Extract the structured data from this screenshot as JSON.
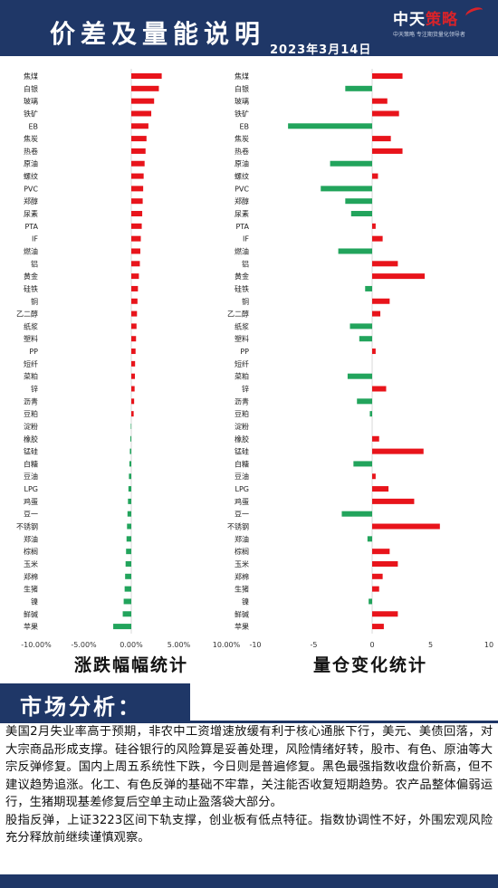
{
  "header": {
    "title": "价差及量能说明",
    "date": "2023年3月14日",
    "logo_name_a": "中天",
    "logo_name_b": "策略",
    "logo_slogan": "中天策略  专注期货量化领导者"
  },
  "colors": {
    "up": "#e8141b",
    "down": "#22a45c",
    "navy": "#1f3767"
  },
  "chart_data": [
    {
      "type": "bar",
      "orientation": "horizontal",
      "title": "涨跌幅幅统计",
      "categories": [
        "焦煤",
        "白银",
        "玻璃",
        "铁矿",
        "EB",
        "焦炭",
        "热卷",
        "原油",
        "螺纹",
        "PVC",
        "郑醇",
        "尿素",
        "PTA",
        "IF",
        "燃油",
        "铝",
        "黄金",
        "硅铁",
        "铜",
        "乙二醇",
        "纸浆",
        "塑料",
        "PP",
        "短纤",
        "菜粕",
        "锌",
        "沥青",
        "豆粕",
        "淀粉",
        "橡胶",
        "锰硅",
        "白糖",
        "豆油",
        "LPG",
        "鸡蛋",
        "豆一",
        "不锈钢",
        "郑油",
        "棕榈",
        "玉米",
        "郑棉",
        "生猪",
        "镍",
        "鲜碱",
        "苹果"
      ],
      "values": [
        3.2,
        2.9,
        2.4,
        2.1,
        1.8,
        1.6,
        1.5,
        1.4,
        1.3,
        1.25,
        1.2,
        1.15,
        1.1,
        1.0,
        0.95,
        0.9,
        0.8,
        0.7,
        0.65,
        0.6,
        0.55,
        0.5,
        0.45,
        0.4,
        0.38,
        0.35,
        0.3,
        0.25,
        -0.05,
        -0.1,
        -0.15,
        -0.2,
        -0.25,
        -0.3,
        -0.35,
        -0.4,
        -0.45,
        -0.5,
        -0.55,
        -0.6,
        -0.65,
        -0.7,
        -0.8,
        -0.9,
        -1.9
      ],
      "xlim": [
        -10,
        10
      ],
      "xticks": [
        "-10.00%",
        "-5.00%",
        "0.00%",
        "5.00%",
        "10.00%"
      ]
    },
    {
      "type": "bar",
      "orientation": "horizontal",
      "title": "量仓变化统计",
      "categories": [
        "焦煤",
        "白银",
        "玻璃",
        "铁矿",
        "EB",
        "焦炭",
        "热卷",
        "原油",
        "螺纹",
        "PVC",
        "郑醇",
        "尿素",
        "PTA",
        "IF",
        "燃油",
        "铝",
        "黄金",
        "硅铁",
        "铜",
        "乙二醇",
        "纸浆",
        "塑料",
        "PP",
        "短纤",
        "菜粕",
        "锌",
        "沥青",
        "豆粕",
        "淀粉",
        "橡胶",
        "锰硅",
        "白糖",
        "豆油",
        "LPG",
        "鸡蛋",
        "豆一",
        "不锈钢",
        "郑油",
        "棕榈",
        "玉米",
        "郑棉",
        "生猪",
        "镍",
        "鲜碱",
        "苹果"
      ],
      "values": [
        2.6,
        -2.3,
        1.3,
        2.3,
        -7.2,
        1.6,
        2.6,
        -3.6,
        0.5,
        -4.4,
        -2.3,
        -1.8,
        0.3,
        0.9,
        -2.9,
        2.2,
        4.5,
        -0.6,
        1.5,
        0.7,
        -1.9,
        -1.1,
        0.3,
        0.0,
        -2.1,
        1.2,
        -1.3,
        -0.2,
        0.0,
        0.6,
        4.4,
        -1.6,
        0.3,
        1.4,
        3.6,
        -2.6,
        5.8,
        -0.4,
        1.5,
        2.2,
        0.9,
        0.6,
        -0.3,
        2.2,
        1.0
      ],
      "xlim": [
        -10,
        10
      ],
      "xticks": [
        "-10",
        "-5",
        "0",
        "5",
        "10"
      ]
    }
  ],
  "section": {
    "title": "市场分析："
  },
  "analysis": {
    "p1": "美国2月失业率高于预期，非农中工资增速放缓有利于核心通胀下行，美元、美债回落，对大宗商品形成支撑。硅谷银行的风险算是妥善处理，风险情绪好转，股市、有色、原油等大宗反弹修复。国内上周五系统性下跌，今日则是普遍修复。黑色最强指数收盘价新高，但不建议趋势追涨。化工、有色反弹的基础不牢靠，关注能否收复短期趋势。农产品整体偏弱运行，生猪期现基差修复后空单主动止盈落袋大部分。",
    "p2": "股指反弹，上证3223区间下轨支撑，创业板有低点特征。指数协调性不好，外围宏观风险充分释放前继续谨慎观察。"
  }
}
